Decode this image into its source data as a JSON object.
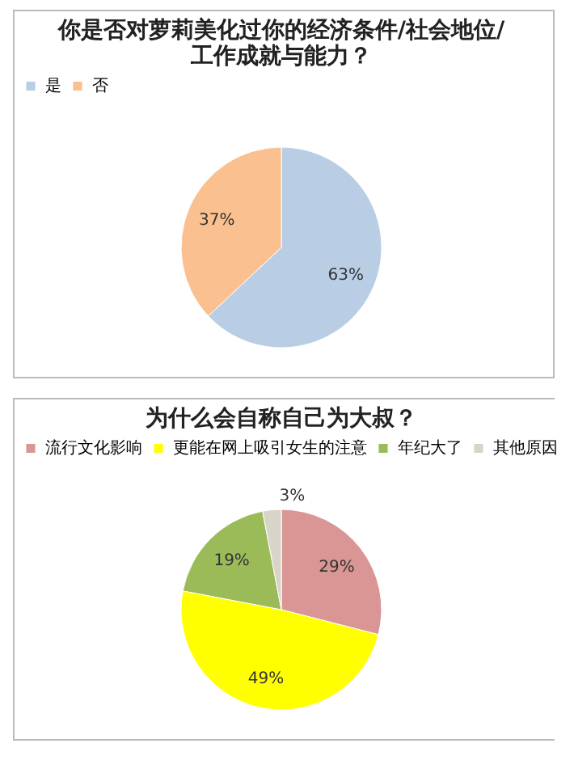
{
  "chart_data": [
    {
      "type": "pie",
      "title": "你是否对萝莉美化过你的经济条件/社会地位/工作成就与能力？",
      "categories": [
        "是",
        "否"
      ],
      "values": [
        63,
        37
      ],
      "colors": [
        "#b9cde5",
        "#fac090"
      ],
      "value_labels": [
        "63%",
        "37%"
      ],
      "legend": "top"
    },
    {
      "type": "pie",
      "title": "为什么会自称自己为大叔？",
      "categories": [
        "流行文化影响",
        "更能在网上吸引女生的注意",
        "年纪大了",
        "其他原因"
      ],
      "values": [
        29,
        49,
        19,
        3
      ],
      "colors": [
        "#d99694",
        "#ffff00",
        "#9bbb59",
        "#d9d4c8"
      ],
      "value_labels": [
        "29%",
        "49%",
        "19%",
        "3%"
      ],
      "legend": "top"
    }
  ]
}
